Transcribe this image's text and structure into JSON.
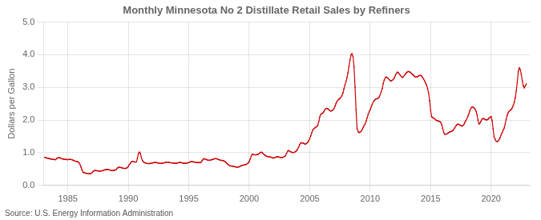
{
  "chart_data": {
    "type": "line",
    "title": "Monthly Minnesota No 2 Distillate Retail Sales by Refiners",
    "ylabel": "Dollars per Gallon",
    "annotations": [
      "Source: U.S. Energy Information Administration"
    ],
    "color": "#cc0000",
    "marker": "square",
    "grid": true,
    "xlim": [
      1983.0,
      2023.2
    ],
    "ylim": [
      0.0,
      5.0
    ],
    "xticks": [
      1985,
      1990,
      1995,
      2000,
      2005,
      2010,
      2015,
      2020
    ],
    "yticks": [
      {
        "value": 0.0,
        "label": "0.0"
      },
      {
        "value": 1.0,
        "label": "1.0"
      },
      {
        "value": 2.0,
        "label": "2.0"
      },
      {
        "value": 3.0,
        "label": "3.0"
      },
      {
        "value": 4.0,
        "label": "4.0"
      },
      {
        "value": 5.0,
        "label": "5.0"
      }
    ],
    "x": [
      1983.083,
      1983.167,
      1983.25,
      1983.333,
      1983.417,
      1983.5,
      1983.583,
      1983.667,
      1983.75,
      1983.833,
      1983.917,
      1984.0,
      1984.083,
      1984.167,
      1984.25,
      1984.333,
      1984.417,
      1984.5,
      1984.583,
      1984.667,
      1984.75,
      1984.833,
      1984.917,
      1985.0,
      1985.083,
      1985.167,
      1985.25,
      1985.333,
      1985.417,
      1985.5,
      1985.583,
      1985.667,
      1985.75,
      1985.833,
      1985.917,
      1986.0,
      1986.083,
      1986.167,
      1986.25,
      1986.333,
      1986.417,
      1986.5,
      1986.583,
      1986.667,
      1986.75,
      1986.833,
      1986.917,
      1987.0,
      1987.083,
      1987.167,
      1987.25,
      1987.333,
      1987.417,
      1987.5,
      1987.583,
      1987.667,
      1987.75,
      1987.833,
      1987.917,
      1988.0,
      1988.083,
      1988.167,
      1988.25,
      1988.333,
      1988.417,
      1988.5,
      1988.583,
      1988.667,
      1988.75,
      1988.833,
      1988.917,
      1989.0,
      1989.083,
      1989.167,
      1989.25,
      1989.333,
      1989.417,
      1989.5,
      1989.583,
      1989.667,
      1989.75,
      1989.833,
      1989.917,
      1990.0,
      1990.083,
      1990.167,
      1990.25,
      1990.333,
      1990.417,
      1990.5,
      1990.583,
      1990.667,
      1990.75,
      1990.833,
      1990.917,
      1991.0,
      1991.083,
      1991.167,
      1991.25,
      1991.333,
      1991.417,
      1991.5,
      1991.583,
      1991.667,
      1991.75,
      1991.833,
      1991.917,
      1992.0,
      1992.083,
      1992.167,
      1992.25,
      1992.333,
      1992.417,
      1992.5,
      1992.583,
      1992.667,
      1992.75,
      1992.833,
      1992.917,
      1993.0,
      1993.083,
      1993.167,
      1993.25,
      1993.333,
      1993.417,
      1993.5,
      1993.583,
      1993.667,
      1993.75,
      1993.833,
      1993.917,
      1994.0,
      1994.083,
      1994.167,
      1994.25,
      1994.333,
      1994.417,
      1994.5,
      1994.583,
      1994.667,
      1994.75,
      1994.833,
      1994.917,
      1995.0,
      1995.083,
      1995.167,
      1995.25,
      1995.333,
      1995.417,
      1995.5,
      1995.583,
      1995.667,
      1995.75,
      1995.833,
      1995.917,
      1996.0,
      1996.083,
      1996.167,
      1996.25,
      1996.333,
      1996.417,
      1996.5,
      1996.583,
      1996.667,
      1996.75,
      1996.833,
      1996.917,
      1997.0,
      1997.083,
      1997.167,
      1997.25,
      1997.333,
      1997.417,
      1997.5,
      1997.583,
      1997.667,
      1997.75,
      1997.833,
      1997.917,
      1998.0,
      1998.083,
      1998.167,
      1998.25,
      1998.333,
      1998.417,
      1998.5,
      1998.583,
      1998.667,
      1998.75,
      1998.833,
      1998.917,
      1999.0,
      1999.083,
      1999.167,
      1999.25,
      1999.333,
      1999.417,
      1999.5,
      1999.583,
      1999.667,
      1999.75,
      1999.833,
      1999.917,
      2000.0,
      2000.083,
      2000.167,
      2000.25,
      2000.333,
      2000.417,
      2000.5,
      2000.583,
      2000.667,
      2000.75,
      2000.833,
      2000.917,
      2001.0,
      2001.083,
      2001.167,
      2001.25,
      2001.333,
      2001.417,
      2001.5,
      2001.583,
      2001.667,
      2001.75,
      2001.833,
      2001.917,
      2002.0,
      2002.083,
      2002.167,
      2002.25,
      2002.333,
      2002.417,
      2002.5,
      2002.583,
      2002.667,
      2002.75,
      2002.833,
      2002.917,
      2003.0,
      2003.083,
      2003.167,
      2003.25,
      2003.333,
      2003.417,
      2003.5,
      2003.583,
      2003.667,
      2003.75,
      2003.833,
      2003.917,
      2004.0,
      2004.083,
      2004.167,
      2004.25,
      2004.333,
      2004.417,
      2004.5,
      2004.583,
      2004.667,
      2004.75,
      2004.833,
      2004.917,
      2005.0,
      2005.083,
      2005.167,
      2005.25,
      2005.333,
      2005.417,
      2005.5,
      2005.583,
      2005.667,
      2005.75,
      2005.833,
      2005.917,
      2006.0,
      2006.083,
      2006.167,
      2006.25,
      2006.333,
      2006.417,
      2006.5,
      2006.583,
      2006.667,
      2006.75,
      2006.833,
      2006.917,
      2007.0,
      2007.083,
      2007.167,
      2007.25,
      2007.333,
      2007.417,
      2007.5,
      2007.583,
      2007.667,
      2007.75,
      2007.833,
      2007.917,
      2008.0,
      2008.083,
      2008.167,
      2008.25,
      2008.333,
      2008.417,
      2008.5,
      2008.583,
      2008.667,
      2008.75,
      2008.833,
      2008.917,
      2009.0,
      2009.083,
      2009.167,
      2009.25,
      2009.333,
      2009.417,
      2009.5,
      2009.583,
      2009.667,
      2009.75,
      2009.833,
      2009.917,
      2010.0,
      2010.083,
      2010.167,
      2010.25,
      2010.333,
      2010.417,
      2010.5,
      2010.583,
      2010.667,
      2010.75,
      2010.833,
      2010.917,
      2011.0,
      2011.083,
      2011.167,
      2011.25,
      2011.333,
      2011.417,
      2011.5,
      2011.583,
      2011.667,
      2011.75,
      2011.833,
      2011.917,
      2012.0,
      2012.083,
      2012.167,
      2012.25,
      2012.333,
      2012.417,
      2012.5,
      2012.583,
      2012.667,
      2012.75,
      2012.833,
      2012.917,
      2013.0,
      2013.083,
      2013.167,
      2013.25,
      2013.333,
      2013.417,
      2013.5,
      2013.583,
      2013.667,
      2013.75,
      2013.833,
      2013.917,
      2014.0,
      2014.083,
      2014.167,
      2014.25,
      2014.333,
      2014.417,
      2014.5,
      2014.583,
      2014.667,
      2014.75,
      2014.833,
      2014.917,
      2015.0,
      2015.083,
      2015.167,
      2015.25,
      2015.333,
      2015.417,
      2015.5,
      2015.583,
      2015.667,
      2015.75,
      2015.833,
      2015.917,
      2016.0,
      2016.083,
      2016.167,
      2016.25,
      2016.333,
      2016.417,
      2016.5,
      2016.583,
      2016.667,
      2016.75,
      2016.833,
      2016.917,
      2017.0,
      2017.083,
      2017.167,
      2017.25,
      2017.333,
      2017.417,
      2017.5,
      2017.583,
      2017.667,
      2017.75,
      2017.833,
      2017.917,
      2018.0,
      2018.083,
      2018.167,
      2018.25,
      2018.333,
      2018.417,
      2018.5,
      2018.583,
      2018.667,
      2018.75,
      2018.833,
      2018.917,
      2019.0,
      2019.083,
      2019.167,
      2019.25,
      2019.333,
      2019.417,
      2019.5,
      2019.583,
      2019.667,
      2019.75,
      2019.833,
      2019.917,
      2020.0,
      2020.083,
      2020.167,
      2020.25,
      2020.333,
      2020.417,
      2020.5,
      2020.583,
      2020.667,
      2020.75,
      2020.833,
      2020.917,
      2021.0,
      2021.083,
      2021.167,
      2021.25,
      2021.333,
      2021.417,
      2021.5,
      2021.583,
      2021.667,
      2021.75,
      2021.833,
      2021.917,
      2022.0,
      2022.083,
      2022.167,
      2022.25,
      2022.333,
      2022.417,
      2022.5,
      2022.583,
      2022.667,
      2022.75,
      2022.833,
      2022.917
    ],
    "values": [
      0.862,
      0.853,
      0.841,
      0.834,
      0.826,
      0.817,
      0.81,
      0.806,
      0.8,
      0.797,
      0.792,
      0.788,
      0.832,
      0.841,
      0.852,
      0.848,
      0.832,
      0.818,
      0.81,
      0.805,
      0.799,
      0.796,
      0.792,
      0.789,
      0.795,
      0.8,
      0.795,
      0.787,
      0.776,
      0.76,
      0.748,
      0.738,
      0.733,
      0.72,
      0.7,
      0.64,
      0.57,
      0.48,
      0.41,
      0.39,
      0.38,
      0.375,
      0.37,
      0.368,
      0.365,
      0.362,
      0.37,
      0.39,
      0.43,
      0.45,
      0.46,
      0.455,
      0.448,
      0.442,
      0.438,
      0.44,
      0.445,
      0.45,
      0.46,
      0.47,
      0.48,
      0.488,
      0.49,
      0.486,
      0.478,
      0.47,
      0.462,
      0.458,
      0.46,
      0.465,
      0.472,
      0.485,
      0.528,
      0.545,
      0.558,
      0.552,
      0.542,
      0.535,
      0.528,
      0.522,
      0.518,
      0.53,
      0.548,
      0.58,
      0.64,
      0.68,
      0.72,
      0.738,
      0.73,
      0.72,
      0.715,
      0.72,
      0.82,
      0.98,
      1.02,
      0.98,
      0.85,
      0.76,
      0.72,
      0.7,
      0.688,
      0.678,
      0.672,
      0.668,
      0.67,
      0.675,
      0.68,
      0.688,
      0.695,
      0.7,
      0.705,
      0.698,
      0.69,
      0.682,
      0.678,
      0.675,
      0.678,
      0.682,
      0.688,
      0.695,
      0.705,
      0.71,
      0.715,
      0.71,
      0.702,
      0.695,
      0.69,
      0.688,
      0.685,
      0.682,
      0.68,
      0.682,
      0.69,
      0.698,
      0.705,
      0.7,
      0.692,
      0.685,
      0.68,
      0.678,
      0.68,
      0.685,
      0.692,
      0.7,
      0.715,
      0.725,
      0.73,
      0.725,
      0.718,
      0.712,
      0.708,
      0.705,
      0.702,
      0.7,
      0.698,
      0.7,
      0.75,
      0.79,
      0.82,
      0.81,
      0.798,
      0.785,
      0.775,
      0.77,
      0.772,
      0.78,
      0.79,
      0.8,
      0.81,
      0.818,
      0.82,
      0.812,
      0.8,
      0.788,
      0.778,
      0.77,
      0.765,
      0.76,
      0.748,
      0.73,
      0.7,
      0.668,
      0.64,
      0.62,
      0.605,
      0.595,
      0.588,
      0.582,
      0.578,
      0.572,
      0.565,
      0.558,
      0.56,
      0.57,
      0.59,
      0.605,
      0.615,
      0.622,
      0.628,
      0.635,
      0.645,
      0.665,
      0.692,
      0.73,
      0.81,
      0.895,
      0.96,
      0.95,
      0.94,
      0.935,
      0.938,
      0.945,
      0.958,
      0.978,
      1.005,
      1.02,
      1.0,
      0.968,
      0.938,
      0.915,
      0.898,
      0.888,
      0.88,
      0.875,
      0.87,
      0.862,
      0.848,
      0.835,
      0.848,
      0.862,
      0.875,
      0.878,
      0.872,
      0.865,
      0.858,
      0.855,
      0.858,
      0.868,
      0.885,
      0.91,
      0.98,
      1.04,
      1.068,
      1.052,
      1.032,
      1.018,
      1.01,
      1.008,
      1.018,
      1.038,
      1.068,
      1.11,
      1.178,
      1.245,
      1.298,
      1.305,
      1.298,
      1.285,
      1.272,
      1.268,
      1.285,
      1.318,
      1.368,
      1.428,
      1.518,
      1.608,
      1.69,
      1.73,
      1.758,
      1.78,
      1.798,
      1.84,
      1.96,
      2.098,
      2.178,
      2.198,
      2.218,
      2.258,
      2.318,
      2.348,
      2.358,
      2.348,
      2.318,
      2.288,
      2.278,
      2.288,
      2.308,
      2.348,
      2.418,
      2.498,
      2.568,
      2.608,
      2.638,
      2.668,
      2.698,
      2.748,
      2.828,
      2.958,
      3.078,
      3.178,
      3.298,
      3.448,
      3.648,
      3.848,
      3.998,
      4.028,
      3.948,
      3.628,
      3.008,
      2.318,
      1.738,
      1.648,
      1.618,
      1.628,
      1.658,
      1.708,
      1.768,
      1.828,
      1.888,
      1.968,
      2.068,
      2.168,
      2.258,
      2.318,
      2.398,
      2.478,
      2.548,
      2.598,
      2.628,
      2.648,
      2.658,
      2.668,
      2.708,
      2.778,
      2.868,
      2.968,
      3.118,
      3.228,
      3.298,
      3.318,
      3.298,
      3.268,
      3.238,
      3.208,
      3.198,
      3.218,
      3.248,
      3.288,
      3.368,
      3.428,
      3.468,
      3.448,
      3.408,
      3.368,
      3.328,
      3.308,
      3.328,
      3.368,
      3.408,
      3.448,
      3.478,
      3.488,
      3.478,
      3.458,
      3.428,
      3.398,
      3.368,
      3.338,
      3.318,
      3.318,
      3.328,
      3.348,
      3.368,
      3.368,
      3.348,
      3.308,
      3.258,
      3.198,
      3.138,
      3.068,
      2.968,
      2.818,
      2.598,
      2.298,
      2.108,
      2.068,
      2.068,
      2.038,
      2.008,
      1.988,
      1.978,
      1.968,
      1.958,
      1.928,
      1.858,
      1.748,
      1.618,
      1.568,
      1.568,
      1.578,
      1.598,
      1.618,
      1.638,
      1.648,
      1.658,
      1.678,
      1.718,
      1.768,
      1.818,
      1.858,
      1.878,
      1.868,
      1.848,
      1.828,
      1.818,
      1.828,
      1.868,
      1.928,
      1.988,
      2.048,
      2.118,
      2.198,
      2.298,
      2.368,
      2.398,
      2.398,
      2.378,
      2.338,
      2.278,
      2.178,
      1.998,
      1.878,
      1.908,
      1.968,
      2.028,
      2.048,
      2.038,
      2.018,
      2.008,
      2.008,
      2.028,
      2.058,
      2.088,
      2.108,
      1.988,
      1.738,
      1.488,
      1.408,
      1.358,
      1.338,
      1.358,
      1.408,
      1.468,
      1.548,
      1.618,
      1.688,
      1.758,
      1.878,
      2.028,
      2.148,
      2.228,
      2.278,
      2.298,
      2.328,
      2.378,
      2.448,
      2.548,
      2.688,
      2.898,
      3.148,
      3.498,
      3.598,
      3.548,
      3.398,
      3.198,
      3.048,
      2.988,
      3.048,
      3.108
    ]
  }
}
